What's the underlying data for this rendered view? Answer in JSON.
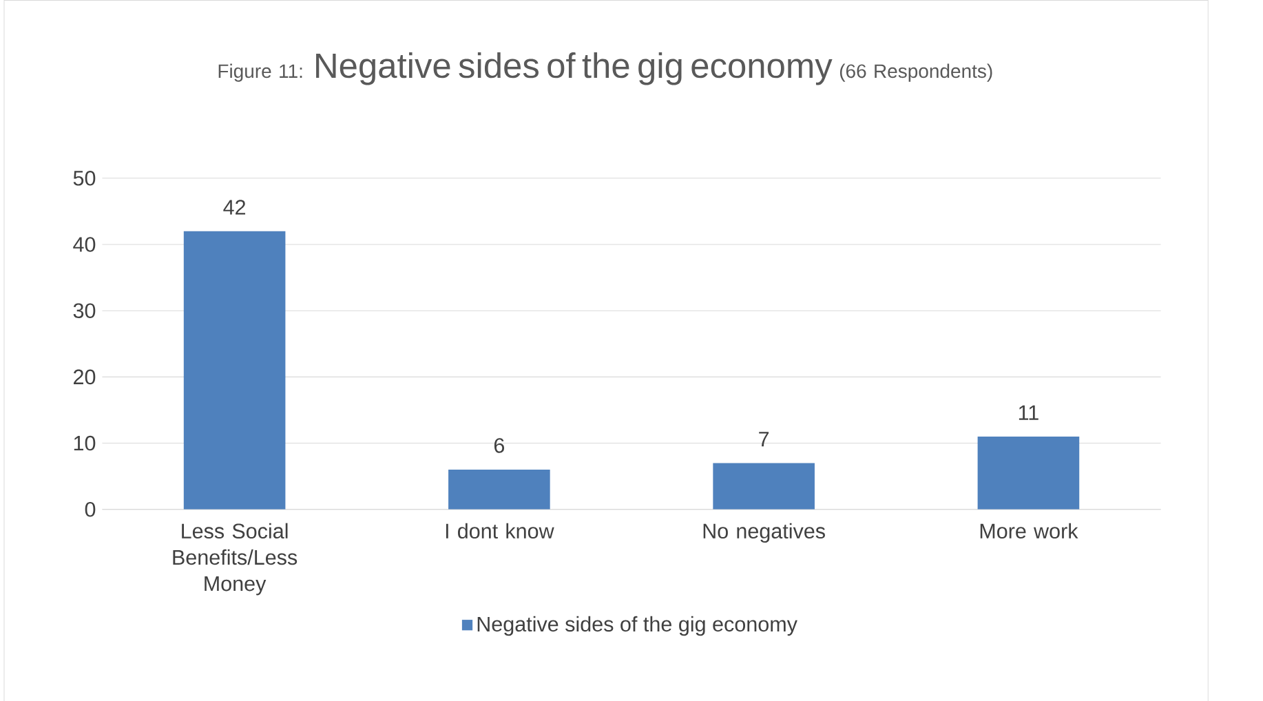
{
  "chart_data": {
    "type": "bar",
    "title": "Negative sides of the gig economy",
    "annotations": [
      "Figure 11:",
      "(66 Respondents)"
    ],
    "categories": [
      "Less Social Benefits/Less Money",
      "I dont know",
      "No negatives",
      "More work"
    ],
    "series": [
      {
        "name": "Negative sides of the gig economy",
        "color": "#4f81bd",
        "values": [
          42,
          6,
          7,
          11
        ]
      }
    ],
    "ylim": [
      0,
      50
    ],
    "yticks": [
      0,
      10,
      20,
      30,
      40,
      50
    ],
    "grid": "y",
    "legend": "bottom",
    "data_labels": true
  }
}
